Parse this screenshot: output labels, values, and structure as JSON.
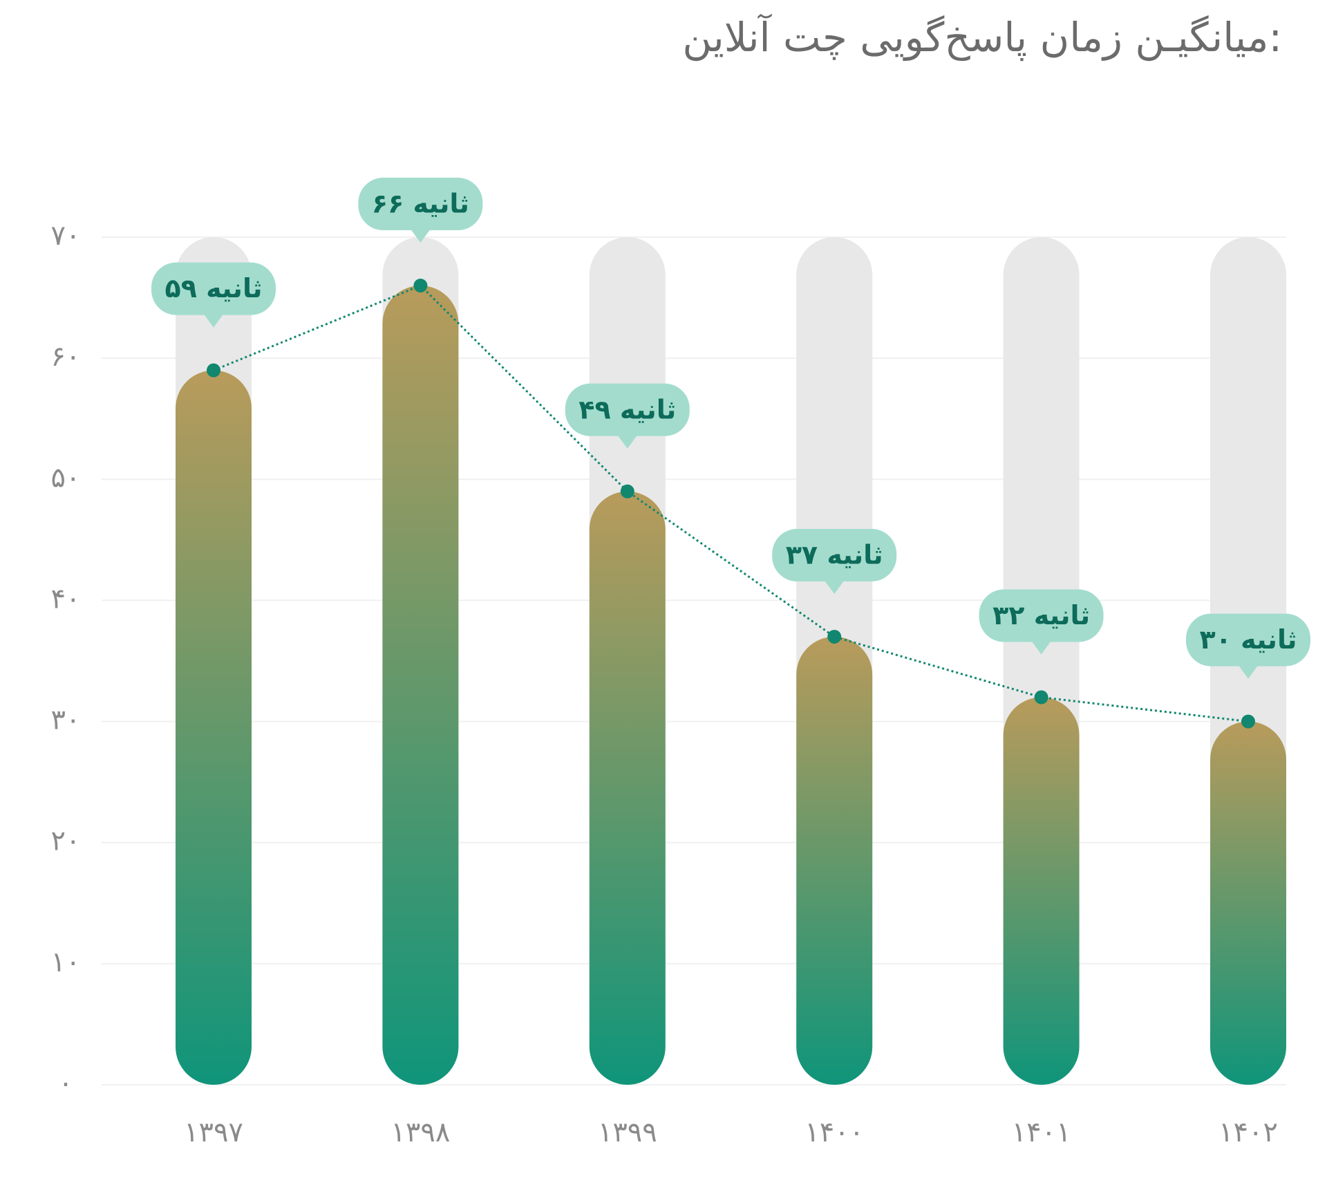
{
  "chart_data": {
    "type": "bar",
    "title": "میانگیـن زمان پاسخ‌گویی چت آنلاین:",
    "categories": [
      "۱۳۹۷",
      "۱۳۹۸",
      "۱۳۹۹",
      "۱۴۰۰",
      "۱۴۰۱",
      "۱۴۰۲"
    ],
    "values": [
      59,
      66,
      49,
      37,
      32,
      30
    ],
    "value_labels": [
      "۵۹ ثانیه",
      "۶۶ ثانیه",
      "۴۹ ثانیه",
      "۳۷ ثانیه",
      "۳۲ ثانیه",
      "۳۰ ثانیه"
    ],
    "ylim": [
      0,
      70
    ],
    "yticks": [
      {
        "value": 0,
        "label": "۰"
      },
      {
        "value": 10,
        "label": "۱۰"
      },
      {
        "value": 20,
        "label": "۲۰"
      },
      {
        "value": 30,
        "label": "۳۰"
      },
      {
        "value": 40,
        "label": "۴۰"
      },
      {
        "value": 50,
        "label": "۵۰"
      },
      {
        "value": 60,
        "label": "۶۰"
      },
      {
        "value": 70,
        "label": "۷۰"
      }
    ],
    "grid": true,
    "color_top": "#b89b5b",
    "color_bottom": "#0f957a",
    "track_color": "#e8e8e8",
    "line_color": "#11876f",
    "label_color": "#a3dccd"
  }
}
